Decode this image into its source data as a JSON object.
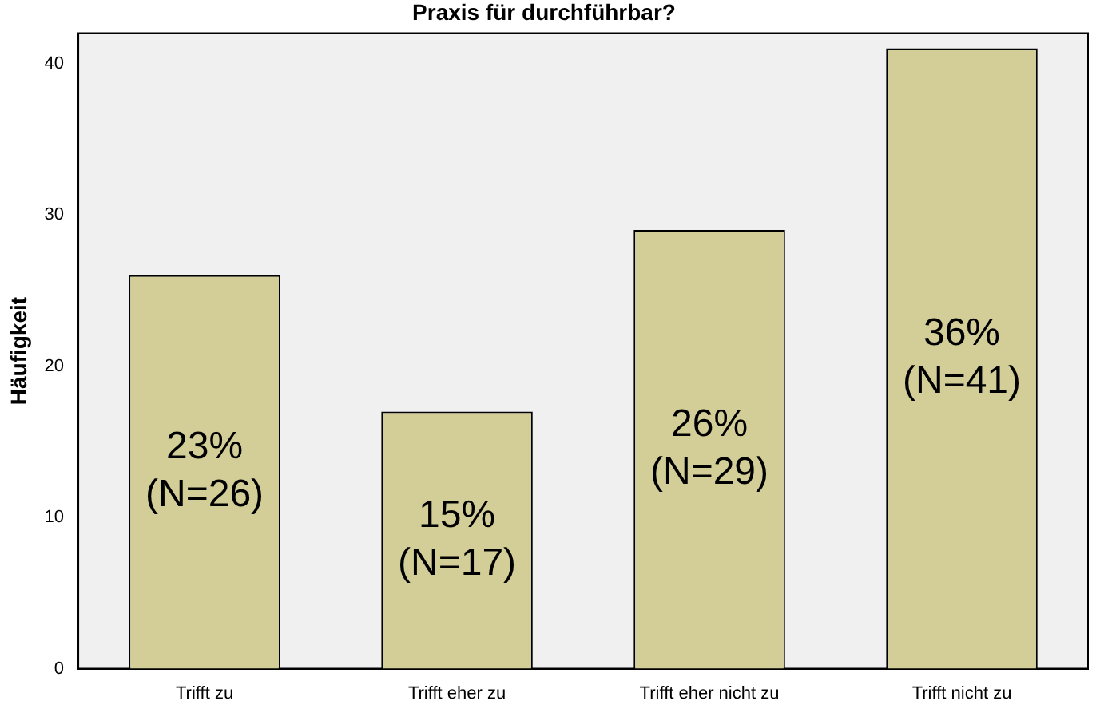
{
  "chart_data": {
    "type": "bar",
    "title": "Praxis für durchführbar?",
    "ylabel": "Häufigkeit",
    "categories": [
      "Trifft zu",
      "Trifft eher zu",
      "Trifft eher nicht zu",
      "Trifft nicht zu"
    ],
    "values": [
      26,
      17,
      29,
      41
    ],
    "color": "#d3ce97",
    "value_labels": [
      "23%\n(N=26)",
      "15%\n(N=17)",
      "26%\n(N=29)",
      "36%\n(N=41)"
    ],
    "ylim": [
      0,
      42
    ],
    "yticks": [
      0,
      10,
      20,
      30,
      40
    ],
    "grid": false,
    "legend": false
  }
}
